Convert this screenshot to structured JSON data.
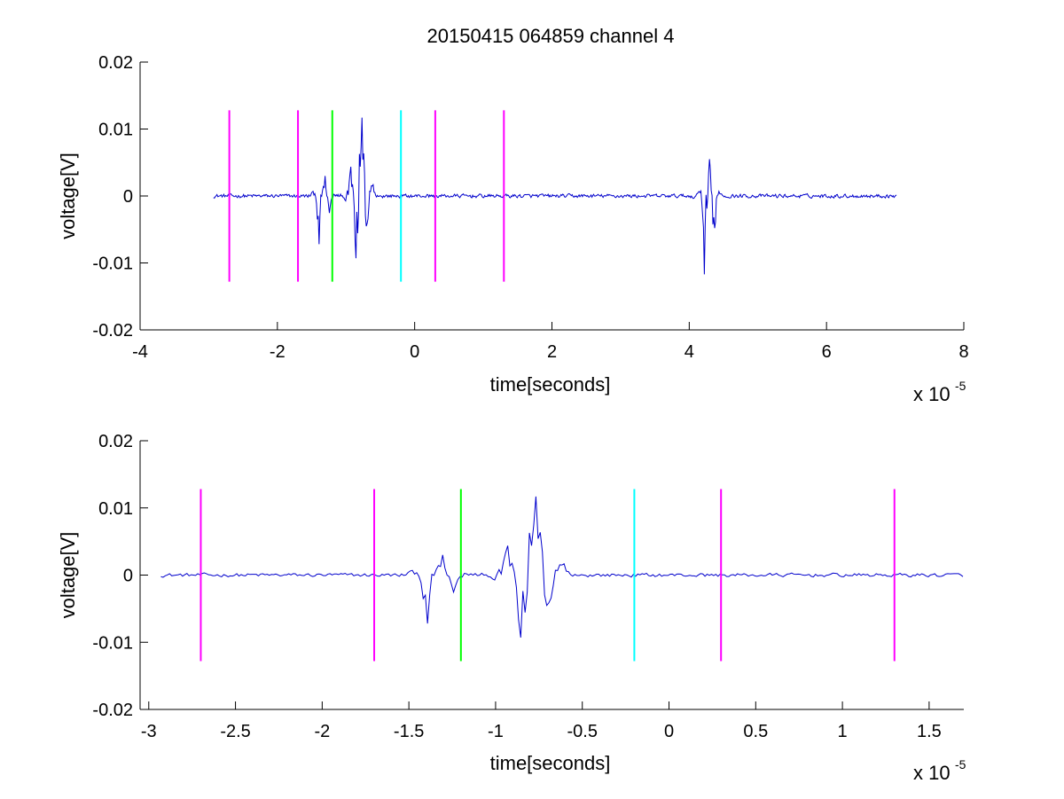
{
  "figure_title": "20150415 064859 channel 4",
  "chart_data": [
    {
      "type": "line",
      "title": "20150415 064859 channel 4",
      "xlabel": "time[seconds]",
      "ylabel": "voltage[V]",
      "x_multiplier_label": "x 10",
      "x_multiplier_exp": "-5",
      "xlim": [
        -4,
        8
      ],
      "ylim": [
        -0.02,
        0.02
      ],
      "x_ticks": [
        -4,
        -2,
        0,
        2,
        4,
        6,
        8
      ],
      "x_tick_labels": [
        "-4",
        "-2",
        "0",
        "2",
        "4",
        "6",
        "8"
      ],
      "y_ticks": [
        -0.02,
        -0.01,
        0,
        0.01,
        0.02
      ],
      "y_tick_labels": [
        "-0.02",
        "-0.01",
        "0",
        "0.01",
        "0.02"
      ],
      "grid": false,
      "series_color": "#0000cc",
      "signal": {
        "x_range": [
          -2.93,
          7.02
        ],
        "noise_amplitude": 0.0004,
        "bursts": [
          {
            "center": -1.35,
            "width": 0.22,
            "min": -0.0072,
            "max": 0.003
          },
          {
            "center": -0.8,
            "width": 0.28,
            "min": -0.0093,
            "max": 0.0117
          },
          {
            "center": 4.27,
            "width": 0.22,
            "min": -0.0117,
            "max": 0.0055
          }
        ]
      },
      "markers": [
        {
          "x": -2.7,
          "color": "#ff00ff"
        },
        {
          "x": -1.7,
          "color": "#ff00ff"
        },
        {
          "x": -1.2,
          "color": "#00ff00"
        },
        {
          "x": -0.2,
          "color": "#00ffff"
        },
        {
          "x": 0.3,
          "color": "#ff00ff"
        },
        {
          "x": 1.3,
          "color": "#ff00ff"
        }
      ],
      "marker_range": [
        -0.0128,
        0.0128
      ]
    },
    {
      "type": "line",
      "title": "",
      "xlabel": "time[seconds]",
      "ylabel": "voltage[V]",
      "x_multiplier_label": "x 10",
      "x_multiplier_exp": "-5",
      "xlim": [
        -3.05,
        1.7
      ],
      "ylim": [
        -0.02,
        0.02
      ],
      "x_ticks": [
        -3,
        -2.5,
        -2,
        -1.5,
        -1,
        -0.5,
        0,
        0.5,
        1,
        1.5
      ],
      "x_tick_labels": [
        "-3",
        "-2.5",
        "-2",
        "-1.5",
        "-1",
        "-0.5",
        "0",
        "0.5",
        "1",
        "1.5"
      ],
      "y_ticks": [
        -0.02,
        -0.01,
        0,
        0.01,
        0.02
      ],
      "y_tick_labels": [
        "-0.02",
        "-0.01",
        "0",
        "0.01",
        "0.02"
      ],
      "grid": false,
      "series_color": "#0000cc",
      "signal": {
        "x_range": [
          -2.93,
          1.7
        ],
        "noise_amplitude": 0.0004,
        "bursts": [
          {
            "center": -1.35,
            "width": 0.22,
            "min": -0.0072,
            "max": 0.003
          },
          {
            "center": -0.8,
            "width": 0.28,
            "min": -0.0093,
            "max": 0.0117
          }
        ]
      },
      "markers": [
        {
          "x": -2.7,
          "color": "#ff00ff"
        },
        {
          "x": -1.7,
          "color": "#ff00ff"
        },
        {
          "x": -1.2,
          "color": "#00ff00"
        },
        {
          "x": -0.2,
          "color": "#00ffff"
        },
        {
          "x": 0.3,
          "color": "#ff00ff"
        },
        {
          "x": 1.3,
          "color": "#ff00ff"
        }
      ],
      "marker_range": [
        -0.0128,
        0.0128
      ]
    }
  ]
}
